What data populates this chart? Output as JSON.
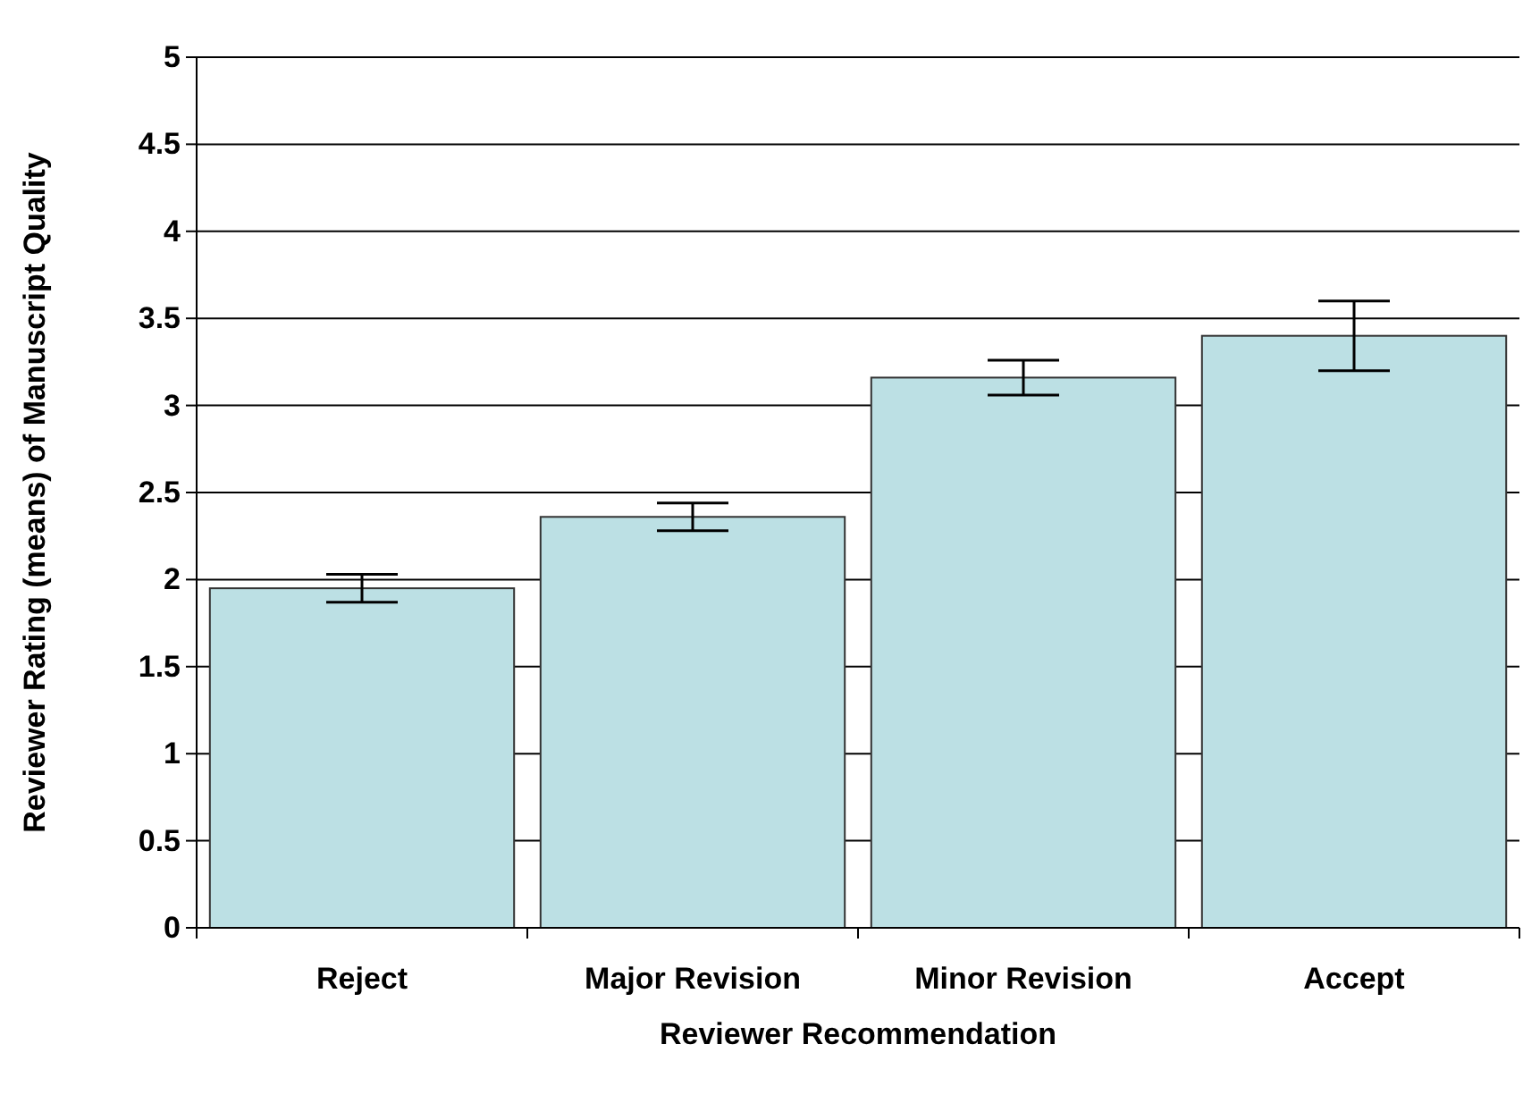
{
  "chart_data": {
    "type": "bar",
    "xlabel": "Reviewer Recommendation",
    "ylabel": "Reviewer Rating (means) of Manuscript Quality",
    "categories": [
      "Reject",
      "Major Revision",
      "Minor Revision",
      "Accept"
    ],
    "values": [
      1.95,
      2.36,
      3.16,
      3.4
    ],
    "errors": [
      0.08,
      0.08,
      0.1,
      0.2
    ],
    "color": "#bce0e4",
    "ylim": [
      0,
      5
    ],
    "yticks": [
      0,
      0.5,
      1,
      1.5,
      2,
      2.5,
      3,
      3.5,
      4,
      4.5,
      5
    ],
    "grid": "y"
  }
}
